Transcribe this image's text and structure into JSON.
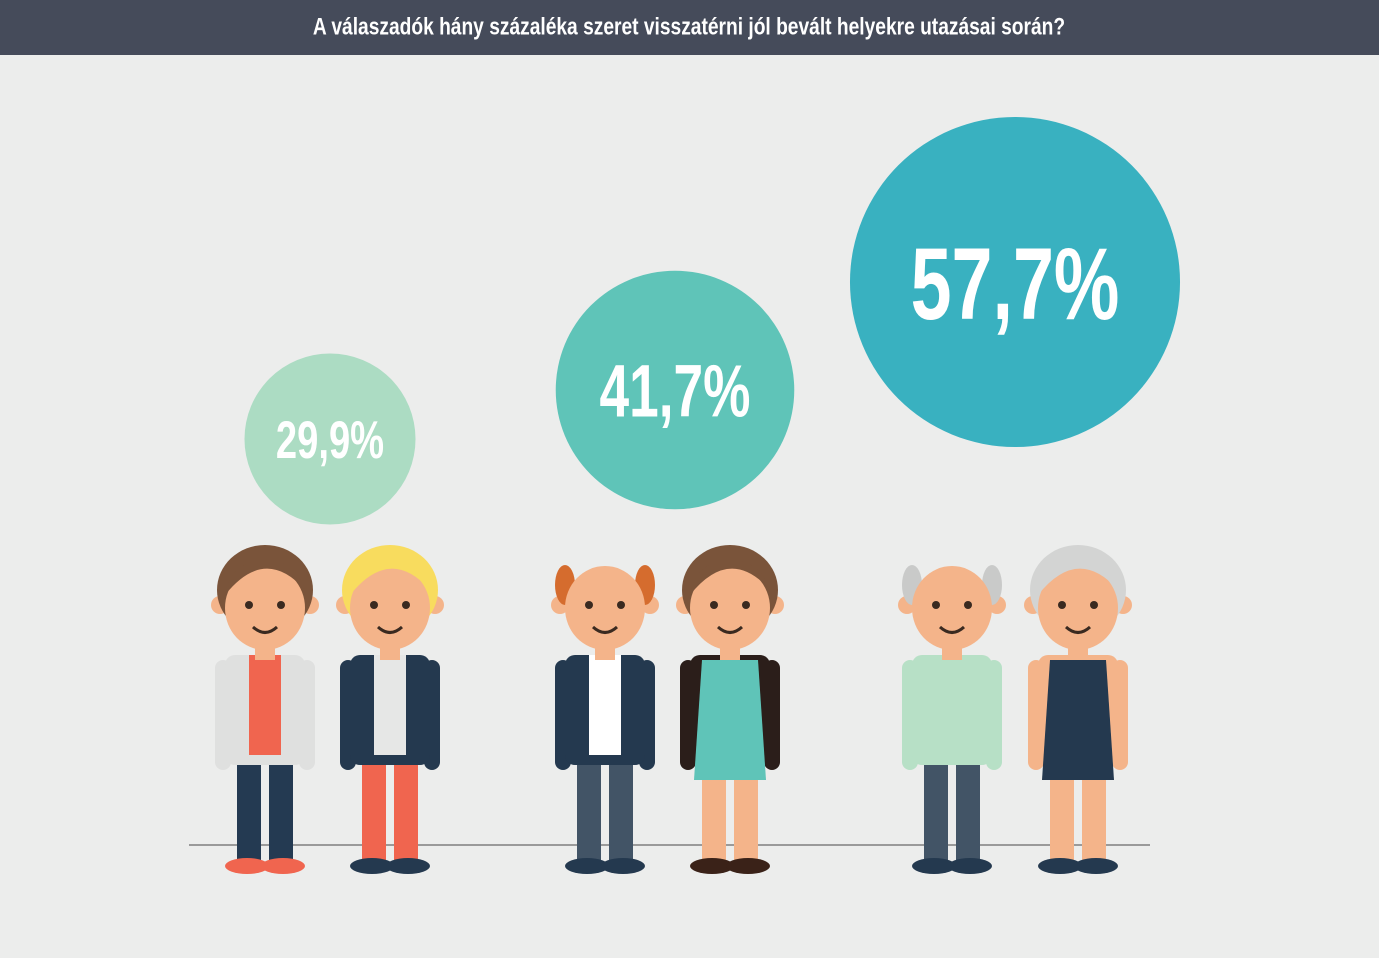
{
  "chart_data": {
    "type": "bubble",
    "title": "A válaszadók hány százaléka szeret visszatérni jól bevált helyekre utazásai során?",
    "values": [
      29.9,
      41.7,
      57.7
    ],
    "value_labels": [
      "29,9%",
      "41,7%",
      "57,7%"
    ],
    "colors": [
      "#acdcc3",
      "#5fc4b8",
      "#39b1c0"
    ]
  }
}
